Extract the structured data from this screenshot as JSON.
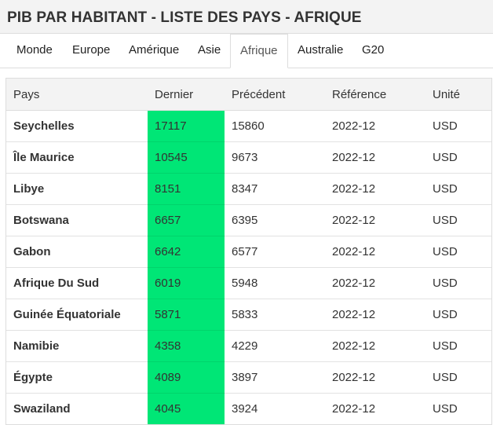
{
  "page": {
    "title": "PIB PAR HABITANT - LISTE DES PAYS - AFRIQUE"
  },
  "tabs": [
    {
      "label": "Monde"
    },
    {
      "label": "Europe"
    },
    {
      "label": "Amérique"
    },
    {
      "label": "Asie"
    },
    {
      "label": "Afrique"
    },
    {
      "label": "Australie"
    },
    {
      "label": "G20"
    }
  ],
  "active_tab": "Afrique",
  "table": {
    "headers": [
      "Pays",
      "Dernier",
      "Précédent",
      "Référence",
      "Unité"
    ],
    "rows": [
      {
        "country": "Seychelles",
        "latest": "17117",
        "previous": "15860",
        "reference": "2022-12",
        "unit": "USD"
      },
      {
        "country": "Île Maurice",
        "latest": "10545",
        "previous": "9673",
        "reference": "2022-12",
        "unit": "USD"
      },
      {
        "country": "Libye",
        "latest": "8151",
        "previous": "8347",
        "reference": "2022-12",
        "unit": "USD"
      },
      {
        "country": "Botswana",
        "latest": "6657",
        "previous": "6395",
        "reference": "2022-12",
        "unit": "USD"
      },
      {
        "country": "Gabon",
        "latest": "6642",
        "previous": "6577",
        "reference": "2022-12",
        "unit": "USD"
      },
      {
        "country": "Afrique Du Sud",
        "latest": "6019",
        "previous": "5948",
        "reference": "2022-12",
        "unit": "USD"
      },
      {
        "country": "Guinée Équatoriale",
        "latest": "5871",
        "previous": "5833",
        "reference": "2022-12",
        "unit": "USD"
      },
      {
        "country": "Namibie",
        "latest": "4358",
        "previous": "4229",
        "reference": "2022-12",
        "unit": "USD"
      },
      {
        "country": "Égypte",
        "latest": "4089",
        "previous": "3897",
        "reference": "2022-12",
        "unit": "USD"
      },
      {
        "country": "Swaziland",
        "latest": "4045",
        "previous": "3924",
        "reference": "2022-12",
        "unit": "USD"
      }
    ]
  },
  "colors": {
    "latest_cell": "#00e676",
    "header_bg": "#f3f3f3"
  }
}
